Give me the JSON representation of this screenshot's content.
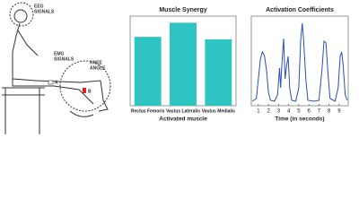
{
  "illustration": {
    "eeg": [
      "EEG",
      "SIGNALS"
    ],
    "emg": [
      "EMG",
      "SIGNALS"
    ],
    "knee": [
      "KNEE",
      "ANGLE"
    ],
    "point_a": "A",
    "point_b": "B"
  },
  "chart_data": [
    {
      "type": "bar",
      "title": "Muscle Synergy",
      "x_label": "Activated muscle",
      "categories": [
        "Rectus Femoris",
        "Vastus Lateralis",
        "Vastus Medialis"
      ],
      "values": [
        0.83,
        1.0,
        0.8
      ],
      "color": "#2ec4c4",
      "ylim": [
        0,
        1.08
      ]
    },
    {
      "type": "line",
      "title": "Activation Coefficients",
      "x_label": "Time (in seconds)",
      "x": [
        0.4,
        0.8,
        1.0,
        1.2,
        1.4,
        1.6,
        1.8,
        2.0,
        2.2,
        2.6,
        2.9,
        3.1,
        3.2,
        3.35,
        3.5,
        3.65,
        3.8,
        3.95,
        4.1,
        4.3,
        4.7,
        5.0,
        5.2,
        5.35,
        5.5,
        5.7,
        5.9,
        6.5,
        7.0,
        7.3,
        7.5,
        7.7,
        7.9,
        8.1,
        8.6,
        8.9,
        9.1,
        9.25,
        9.4,
        9.6,
        9.8
      ],
      "values": [
        0.05,
        0.08,
        0.3,
        0.52,
        0.6,
        0.56,
        0.4,
        0.15,
        0.06,
        0.05,
        0.12,
        0.42,
        0.2,
        0.5,
        0.75,
        0.3,
        0.45,
        0.55,
        0.2,
        0.06,
        0.05,
        0.2,
        0.75,
        0.92,
        0.7,
        0.3,
        0.06,
        0.05,
        0.06,
        0.4,
        0.72,
        0.7,
        0.35,
        0.08,
        0.05,
        0.2,
        0.55,
        0.6,
        0.45,
        0.12,
        0.06
      ],
      "color": "#2a4fb0",
      "xlim": [
        0.3,
        9.9
      ],
      "ylim": [
        0,
        1
      ],
      "xticks": [
        1,
        2,
        3,
        4,
        5,
        6,
        7,
        8,
        9
      ]
    }
  ]
}
